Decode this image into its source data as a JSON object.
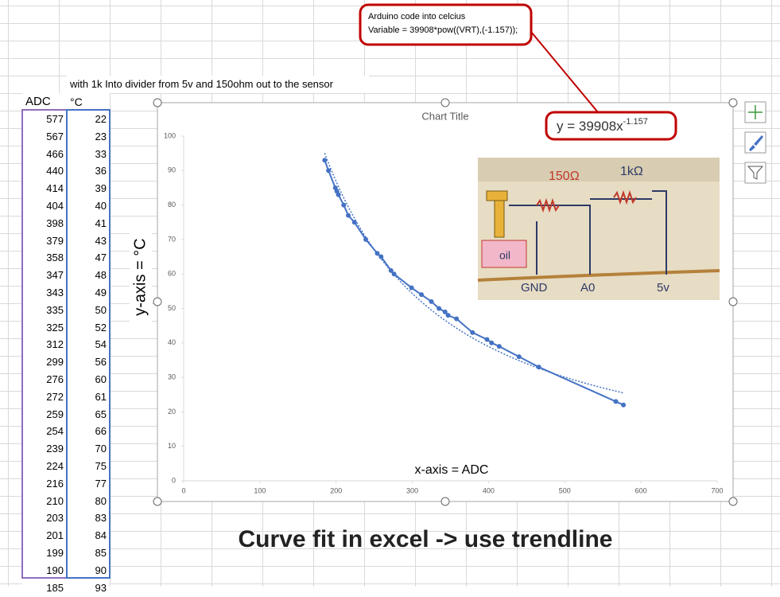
{
  "sheet": {
    "note": "with 1k Into divider from 5v and 150ohm out to the sensor",
    "columns": [
      "ADC",
      "°C"
    ],
    "rows": [
      [
        577,
        22
      ],
      [
        567,
        23
      ],
      [
        466,
        33
      ],
      [
        440,
        36
      ],
      [
        414,
        39
      ],
      [
        404,
        40
      ],
      [
        398,
        41
      ],
      [
        379,
        43
      ],
      [
        358,
        47
      ],
      [
        347,
        48
      ],
      [
        343,
        49
      ],
      [
        335,
        50
      ],
      [
        325,
        52
      ],
      [
        312,
        54
      ],
      [
        299,
        56
      ],
      [
        276,
        60
      ],
      [
        272,
        61
      ],
      [
        259,
        65
      ],
      [
        254,
        66
      ],
      [
        239,
        70
      ],
      [
        224,
        75
      ],
      [
        216,
        77
      ],
      [
        210,
        80
      ],
      [
        203,
        83
      ],
      [
        201,
        84
      ],
      [
        199,
        85
      ],
      [
        190,
        90
      ],
      [
        185,
        93
      ]
    ]
  },
  "callout": {
    "line1": "Arduino code into celcius",
    "line2": "Variable = 39908*pow((VRT),(-1.157));"
  },
  "circuit": {
    "r1": "150Ω",
    "r2": "1kΩ",
    "gnd": "GND",
    "a0": "A0",
    "vcc": "5v",
    "oil": "oil"
  },
  "caption": "Curve fit in excel -> use trendline",
  "chart_data": {
    "type": "scatter",
    "title": "Chart Title",
    "x_label": "x-axis = ADC",
    "y_label": "y-axis = °C",
    "x": [
      577,
      567,
      466,
      440,
      414,
      404,
      398,
      379,
      358,
      347,
      343,
      335,
      325,
      312,
      299,
      276,
      272,
      259,
      254,
      239,
      224,
      216,
      210,
      203,
      201,
      199,
      190,
      185
    ],
    "series": [
      {
        "color": "#4472c4",
        "values": [
          22,
          23,
          33,
          36,
          39,
          40,
          41,
          43,
          47,
          48,
          49,
          50,
          52,
          54,
          56,
          60,
          61,
          65,
          66,
          70,
          75,
          77,
          80,
          83,
          84,
          85,
          90,
          93
        ]
      }
    ],
    "lines": true,
    "grid": false,
    "xlim": [
      0,
      700
    ],
    "xticks": [
      0,
      100,
      200,
      300,
      400,
      500,
      600,
      700
    ],
    "ylim": [
      0,
      100
    ],
    "yticks": [
      0,
      10,
      20,
      30,
      40,
      50,
      60,
      70,
      80,
      90,
      100
    ],
    "trendline": {
      "label": "y = 39908x",
      "coefficient": 39908,
      "exponent": -1.157
    }
  }
}
